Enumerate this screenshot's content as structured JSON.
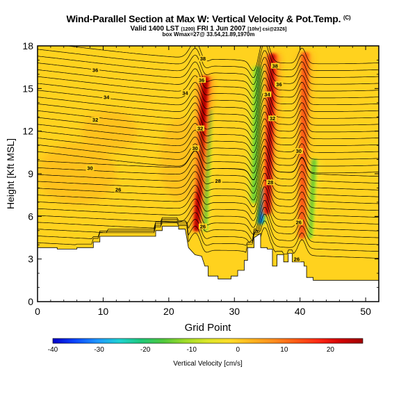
{
  "header": {
    "title": "Wind-Parallel Section at Max W: Vertical Velocity & Pot.Temp.",
    "title_mark": "(C)",
    "valid_prefix": "Valid 1400 LST",
    "valid_small1": "(1200)",
    "valid_main": "FRI 1 Jun 2007",
    "valid_small2": "[10hr] csi@23Z6]",
    "location": "box Wmax=27@ 33.54,21.89,1970m"
  },
  "colors": {
    "terrain": "#ffffff",
    "background_field": "#ffd21e",
    "contour": "#000000",
    "colorbar_stops": [
      "#0000c8",
      "#0a46ff",
      "#1e96ff",
      "#1ed2d2",
      "#1ec878",
      "#50c83c",
      "#a0dc28",
      "#dce628",
      "#ffdc28",
      "#ffb41e",
      "#ff8c1e",
      "#ff5a14",
      "#ff2814",
      "#d20000",
      "#a00000"
    ]
  },
  "chart_data": {
    "type": "contour",
    "title": "Wind-Parallel Section at Max W: Vertical Velocity & Pot.Temp.",
    "xlabel": "Grid Point",
    "ylabel": "Height [Kft MSL]",
    "xlim": [
      0,
      52
    ],
    "ylim": [
      0,
      18
    ],
    "xticks": [
      0,
      10,
      20,
      30,
      40,
      50
    ],
    "yticks": [
      0,
      3,
      6,
      9,
      12,
      15,
      18
    ],
    "colorbar": {
      "label": "Vertical Velocity [cm/s]",
      "range": [
        -40,
        27
      ],
      "ticks": [
        -40,
        -30,
        -20,
        -10,
        0,
        10,
        20
      ]
    },
    "terrain_profile": [
      [
        0,
        3.8
      ],
      [
        3,
        3.8
      ],
      [
        3,
        3.7
      ],
      [
        6,
        3.7
      ],
      [
        6,
        3.8
      ],
      [
        8.5,
        3.8
      ],
      [
        8.5,
        4.2
      ],
      [
        9.5,
        4.2
      ],
      [
        9.5,
        4.6
      ],
      [
        18,
        4.6
      ],
      [
        18,
        5.0
      ],
      [
        19,
        5.0
      ],
      [
        19,
        5.3
      ],
      [
        21.5,
        5.3
      ],
      [
        21.5,
        5.1
      ],
      [
        22.5,
        5.1
      ],
      [
        23,
        3.8
      ],
      [
        24,
        3.3
      ],
      [
        25,
        3.2
      ],
      [
        25.5,
        2.5
      ],
      [
        26,
        2.5
      ],
      [
        26,
        1.8
      ],
      [
        27.5,
        1.8
      ],
      [
        27.5,
        1.6
      ],
      [
        29.5,
        1.6
      ],
      [
        29.5,
        1.8
      ],
      [
        30.5,
        1.8
      ],
      [
        30.5,
        2.2
      ],
      [
        31.5,
        2.2
      ],
      [
        31.5,
        2.9
      ],
      [
        32,
        2.9
      ],
      [
        32,
        3.8
      ],
      [
        33,
        3.8
      ],
      [
        33,
        4.5
      ],
      [
        34,
        4.8
      ],
      [
        34,
        3.8
      ],
      [
        35,
        3.8
      ],
      [
        35,
        3.7
      ],
      [
        35.8,
        3.7
      ],
      [
        35.8,
        2.5
      ],
      [
        36.5,
        2.5
      ],
      [
        36.5,
        3.3
      ],
      [
        37.5,
        3.3
      ],
      [
        37.5,
        2.8
      ],
      [
        38.2,
        2.8
      ],
      [
        38.2,
        3.4
      ],
      [
        38.8,
        3.4
      ],
      [
        38.8,
        2.8
      ],
      [
        40.6,
        2.8
      ],
      [
        40.6,
        2.5
      ],
      [
        41,
        2.5
      ],
      [
        41,
        1.7
      ],
      [
        42,
        1.7
      ],
      [
        42,
        1.5
      ],
      [
        52,
        1.5
      ]
    ],
    "updrafts": [
      {
        "x": 24.2,
        "y_bottom": 5.0,
        "y_top": 15.8,
        "tilt_x": 1.4,
        "max_cm_s": 27
      },
      {
        "x": 35.0,
        "y_bottom": 6.2,
        "y_top": 17.4,
        "tilt_x": 0.8,
        "max_cm_s": 25
      },
      {
        "x": 40.3,
        "y_bottom": 4.5,
        "y_top": 17.5,
        "tilt_x": 0.5,
        "max_cm_s": 15
      }
    ],
    "downdrafts": [
      {
        "x": 34.0,
        "y_bottom": 5.5,
        "y_top": 8.0,
        "min_cm_s": -35
      },
      {
        "x": 33.0,
        "y_bottom": 7.0,
        "y_top": 16.5,
        "min_cm_s": -18
      },
      {
        "x": 25.5,
        "y_bottom": 5.0,
        "y_top": 13.5,
        "min_cm_s": -15
      },
      {
        "x": 41.5,
        "y_bottom": 4.5,
        "y_top": 10.0,
        "min_cm_s": -15
      }
    ],
    "contour_labels": [
      {
        "text": "38",
        "x": 25.2,
        "y": 17.1
      },
      {
        "text": "38",
        "x": 36.2,
        "y": 16.6
      },
      {
        "text": "36",
        "x": 8.8,
        "y": 16.3
      },
      {
        "text": "36",
        "x": 25.0,
        "y": 15.6
      },
      {
        "text": "36",
        "x": 36.8,
        "y": 15.3
      },
      {
        "text": "34",
        "x": 10.5,
        "y": 14.4
      },
      {
        "text": "34",
        "x": 22.5,
        "y": 14.7
      },
      {
        "text": "34",
        "x": 35.0,
        "y": 14.6
      },
      {
        "text": "32",
        "x": 8.8,
        "y": 12.8
      },
      {
        "text": "32",
        "x": 24.8,
        "y": 12.2
      },
      {
        "text": "32",
        "x": 35.8,
        "y": 12.9
      },
      {
        "text": "30",
        "x": 24.0,
        "y": 10.8
      },
      {
        "text": "30",
        "x": 39.8,
        "y": 10.6
      },
      {
        "text": "30",
        "x": 8.0,
        "y": 9.4
      },
      {
        "text": "28",
        "x": 27.5,
        "y": 8.5
      },
      {
        "text": "28",
        "x": 35.5,
        "y": 8.4
      },
      {
        "text": "26",
        "x": 12.3,
        "y": 7.9
      },
      {
        "text": "26",
        "x": 25.2,
        "y": 5.3
      },
      {
        "text": "26",
        "x": 39.8,
        "y": 5.6
      },
      {
        "text": "26",
        "x": 39.5,
        "y": 3.0
      }
    ]
  }
}
